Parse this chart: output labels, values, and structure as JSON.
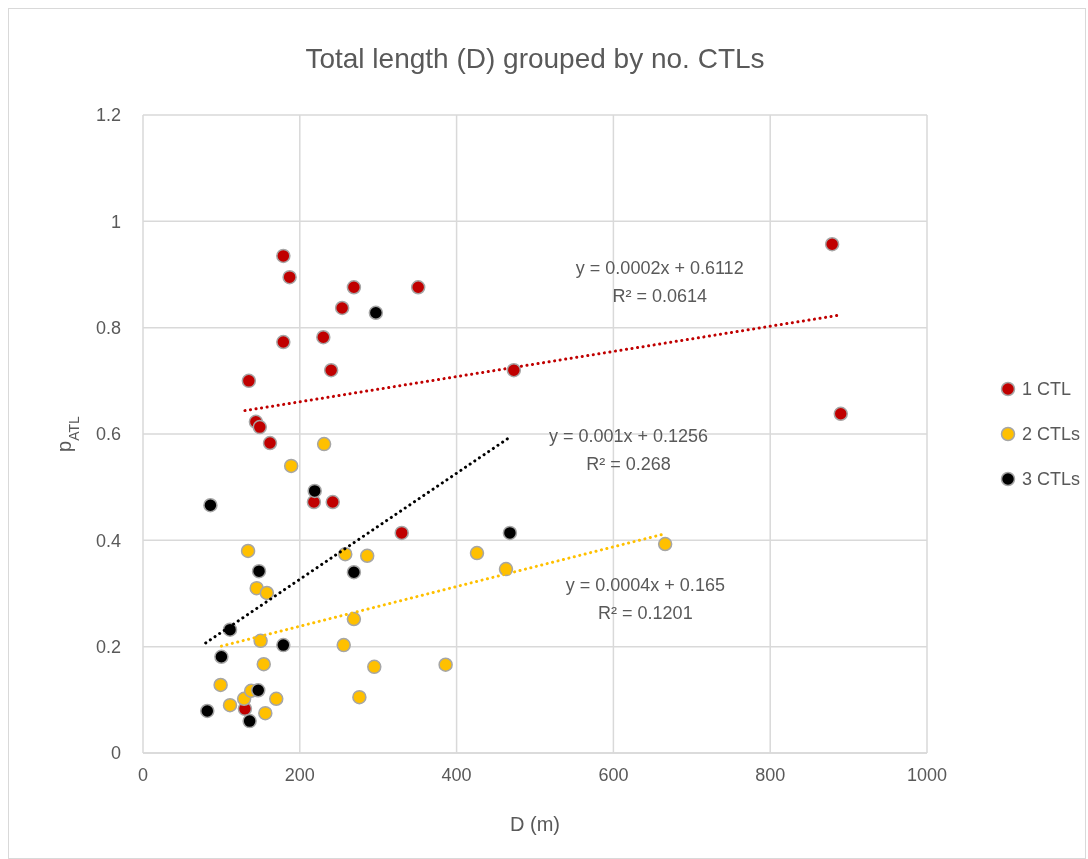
{
  "chart_data": {
    "type": "scatter",
    "title": "Total length (D) grouped by no. CTLs",
    "xlabel": "D (m)",
    "ylabel": "p$_{ATL}$",
    "xlim": [
      0,
      1000
    ],
    "xticks": [
      0,
      200,
      400,
      600,
      800,
      1000
    ],
    "ylim": [
      0,
      1.2
    ],
    "yticks": [
      0,
      0.2,
      0.4,
      0.6,
      0.8,
      1,
      1.2
    ],
    "grid": true,
    "legend": "right",
    "marker": "circle",
    "series": [
      {
        "name": "1 CTL",
        "color": "#c00000",
        "x": [
          179,
          187,
          269,
          351,
          254,
          179,
          230,
          240,
          135,
          144,
          149,
          162,
          218,
          242,
          330,
          473,
          879,
          890,
          130
        ],
        "values": [
          0.935,
          0.895,
          0.876,
          0.876,
          0.837,
          0.773,
          0.782,
          0.72,
          0.7,
          0.623,
          0.613,
          0.583,
          0.472,
          0.472,
          0.414,
          0.72,
          0.957,
          0.638,
          0.083
        ]
      },
      {
        "name": "2 CTLs",
        "color": "#ffc000",
        "x": [
          231,
          189,
          134,
          258,
          286,
          426,
          463,
          666,
          145,
          158,
          269,
          150,
          256,
          154,
          295,
          386,
          99,
          111,
          129,
          138,
          170,
          156,
          276
        ],
        "values": [
          0.581,
          0.54,
          0.38,
          0.374,
          0.371,
          0.376,
          0.346,
          0.393,
          0.31,
          0.301,
          0.252,
          0.211,
          0.203,
          0.167,
          0.162,
          0.166,
          0.128,
          0.09,
          0.102,
          0.117,
          0.102,
          0.075,
          0.105
        ]
      },
      {
        "name": "3 CTLs",
        "color": "#000000",
        "x": [
          86,
          297,
          219,
          148,
          269,
          468,
          111,
          179,
          100,
          147,
          82,
          136
        ],
        "values": [
          0.466,
          0.828,
          0.493,
          0.342,
          0.34,
          0.414,
          0.232,
          0.203,
          0.181,
          0.118,
          0.079,
          0.06
        ]
      },
      {
        "type": "line",
        "color": "#c00000",
        "line_style": "dotted",
        "marker": "none",
        "x": [
          130,
          890
        ],
        "values": [
          0.644,
          0.824
        ]
      },
      {
        "type": "line",
        "color": "#000000",
        "line_style": "dotted",
        "marker": "none",
        "x": [
          80,
          470
        ],
        "values": [
          0.207,
          0.596
        ]
      },
      {
        "type": "line",
        "color": "#ffc000",
        "line_style": "dotted",
        "marker": "none",
        "x": [
          100,
          665
        ],
        "values": [
          0.201,
          0.412
        ]
      }
    ],
    "annotations": [
      "y = 0.0002x + 0.6112",
      "R² = 0.0614",
      "y = 0.001x + 0.1256",
      "R² = 0.268",
      "y = 0.0004x + 0.165",
      "R² = 0.1201"
    ]
  }
}
